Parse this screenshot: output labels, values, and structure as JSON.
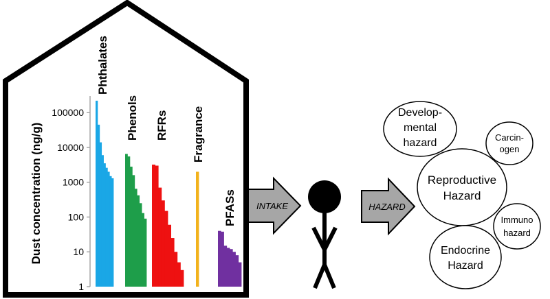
{
  "chart_data": {
    "type": "bar",
    "ylabel": "Dust concentration (ng/g)",
    "yscale": "log",
    "ylim": [
      1,
      300000
    ],
    "yticks": [
      1,
      10,
      100,
      1000,
      10000,
      100000
    ],
    "ytick_labels": [
      "1",
      "10",
      "100",
      "1000",
      "10000",
      "100000"
    ],
    "groups": [
      {
        "name": "Phthalates",
        "color": "#1aa7e6",
        "values": [
          220000,
          45000,
          14000,
          6000,
          3500,
          2600,
          2000,
          1500,
          1300
        ]
      },
      {
        "name": "Phenols",
        "color": "#1e9e4a",
        "values": [
          6500,
          5500,
          2800,
          1600,
          650,
          420,
          250,
          130,
          90
        ]
      },
      {
        "name": "RFRs",
        "color": "#ee1111",
        "values": [
          3200,
          3000,
          700,
          300,
          150,
          60,
          25,
          10,
          5,
          3
        ]
      },
      {
        "name": "Fragrance",
        "color": "#f2b21c",
        "values": [
          2000
        ]
      },
      {
        "name": "PFASs",
        "color": "#7030a0",
        "values": [
          40,
          38,
          15,
          13,
          12,
          10,
          8,
          5
        ]
      }
    ]
  },
  "flow": {
    "intake_label": "INTAKE",
    "hazard_label": "HAZARD"
  },
  "hazards": {
    "developmental": [
      "Develop-",
      "mental",
      "hazard"
    ],
    "carcinogen": [
      "Carcin-",
      "ogen"
    ],
    "reproductive": [
      "Reproductive",
      "Hazard"
    ],
    "immuno": [
      "Immuno",
      "hazard"
    ],
    "endocrine": [
      "Endocrine",
      "Hazard"
    ]
  },
  "colors": {
    "arrow_fill": "#a6a6a6",
    "outline": "#000000",
    "axis": "#a6a6a6"
  }
}
